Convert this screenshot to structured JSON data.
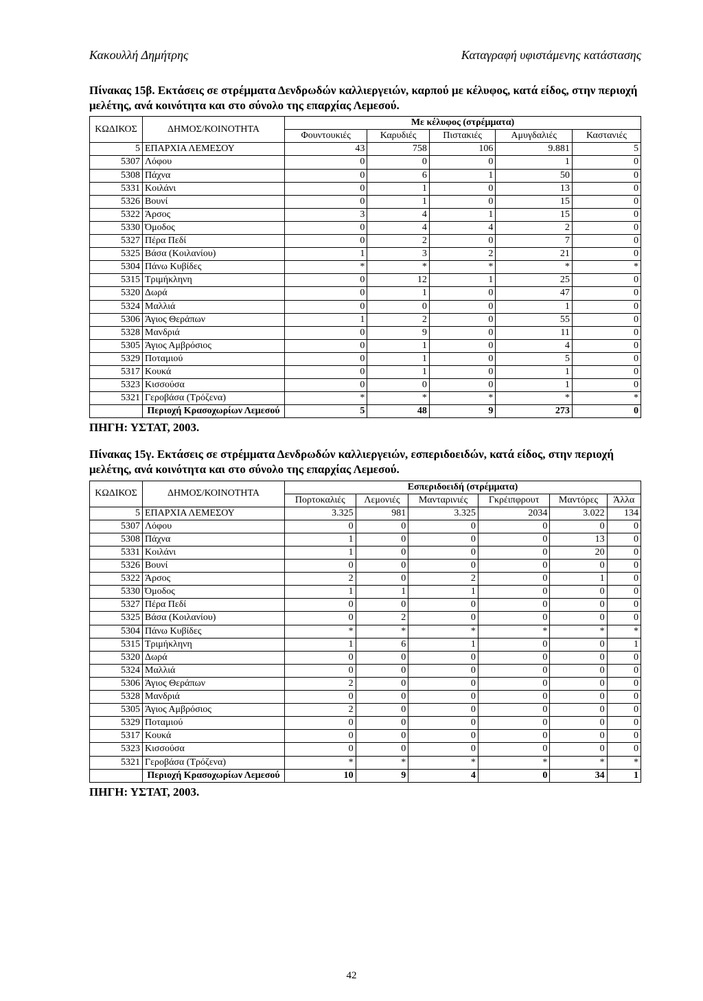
{
  "header": {
    "left": "Κακουλλή Δημήτρης",
    "right": "Καταγραφή υφιστάμενης κατάστασης"
  },
  "pageNumber": "42",
  "source": "ΠΗΓΗ: ΥΣΤΑΤ, 2003.",
  "table1": {
    "title": "Πίνακας 15β. Εκτάσεις σε στρέμματα Δενδρωδών καλλιεργειών, καρπού με κέλυφος, κατά είδος, στην περιοχή μελέτης, ανά κοινότητα και στο σύνολο της επαρχίας Λεμεσού.",
    "groupHeader": "Με κέλυφος (στρέμματα)",
    "colCode": "ΚΩΔΙΚΟΣ",
    "colName": "ΔΗΜΟΣ/ΚΟΙΝΟΤΗΤΑ",
    "columns": [
      "Φουντουκιές",
      "Καρυδιές",
      "Πιστακιές",
      "Αμυγδαλιές",
      "Καστανιές"
    ],
    "rows": [
      [
        "5",
        "ΕΠΑΡΧΙΑ ΛΕΜΕΣΟΥ",
        "43",
        "758",
        "106",
        "9.881",
        "5"
      ],
      [
        "5307",
        "Λόφου",
        "0",
        "0",
        "0",
        "1",
        "0"
      ],
      [
        "5308",
        "Πάχνα",
        "0",
        "6",
        "1",
        "50",
        "0"
      ],
      [
        "5331",
        "Κοιλάνι",
        "0",
        "1",
        "0",
        "13",
        "0"
      ],
      [
        "5326",
        "Βουνί",
        "0",
        "1",
        "0",
        "15",
        "0"
      ],
      [
        "5322",
        "Άρσος",
        "3",
        "4",
        "1",
        "15",
        "0"
      ],
      [
        "5330",
        "Όμοδος",
        "0",
        "4",
        "4",
        "2",
        "0"
      ],
      [
        "5327",
        "Πέρα Πεδί",
        "0",
        "2",
        "0",
        "7",
        "0"
      ],
      [
        "5325",
        "Βάσα (Κοιλανίου)",
        "1",
        "3",
        "2",
        "21",
        "0"
      ],
      [
        "5304",
        "Πάνω Κυβίδες",
        "*",
        "*",
        "*",
        "*",
        "*"
      ],
      [
        "5315",
        "Τριμήκληνη",
        "0",
        "12",
        "1",
        "25",
        "0"
      ],
      [
        "5320",
        "Δωρά",
        "0",
        "1",
        "0",
        "47",
        "0"
      ],
      [
        "5324",
        "Μαλλιά",
        "0",
        "0",
        "0",
        "1",
        "0"
      ],
      [
        "5306",
        "Άγιος Θεράπων",
        "1",
        "2",
        "0",
        "55",
        "0"
      ],
      [
        "5328",
        "Μανδριά",
        "0",
        "9",
        "0",
        "11",
        "0"
      ],
      [
        "5305",
        "Άγιος Αμβρόσιος",
        "0",
        "1",
        "0",
        "4",
        "0"
      ],
      [
        "5329",
        "Ποταμιού",
        "0",
        "1",
        "0",
        "5",
        "0"
      ],
      [
        "5317",
        "Κουκά",
        "0",
        "1",
        "0",
        "1",
        "0"
      ],
      [
        "5323",
        "Κισσούσα",
        "0",
        "0",
        "0",
        "1",
        "0"
      ],
      [
        "5321",
        "Γεροβάσα (Τρόζενα)",
        "*",
        "*",
        "*",
        "*",
        "*"
      ]
    ],
    "summary": [
      "",
      "Περιοχή Κρασοχωρίων Λεμεσού",
      "5",
      "48",
      "9",
      "273",
      "0"
    ]
  },
  "table2": {
    "title": "Πίνακας 15γ. Εκτάσεις σε στρέμματα Δενδρωδών καλλιεργειών, εσπεριδοειδών, κατά είδος, στην περιοχή μελέτης, ανά κοινότητα και στο σύνολο της επαρχίας Λεμεσού.",
    "groupHeader": "Εσπεριδοειδή (στρέμματα)",
    "colCode": "ΚΩΔΙΚΟΣ",
    "colName": "ΔΗΜΟΣ/ΚΟΙΝΟΤΗΤΑ",
    "columns": [
      "Πορτοκαλιές",
      "Λεμονιές",
      "Μανταρινιές",
      "Γκρέιπφρουτ",
      "Μαντόρες",
      "Άλλα"
    ],
    "rows": [
      [
        "5",
        "ΕΠΑΡΧΙΑ ΛΕΜΕΣΟΥ",
        "3.325",
        "981",
        "3.325",
        "2034",
        "3.022",
        "134"
      ],
      [
        "5307",
        "Λόφου",
        "0",
        "0",
        "0",
        "0",
        "0",
        "0"
      ],
      [
        "5308",
        "Πάχνα",
        "1",
        "0",
        "0",
        "0",
        "13",
        "0"
      ],
      [
        "5331",
        "Κοιλάνι",
        "1",
        "0",
        "0",
        "0",
        "20",
        "0"
      ],
      [
        "5326",
        "Βουνί",
        "0",
        "0",
        "0",
        "0",
        "0",
        "0"
      ],
      [
        "5322",
        "Άρσος",
        "2",
        "0",
        "2",
        "0",
        "1",
        "0"
      ],
      [
        "5330",
        "Όμοδος",
        "1",
        "1",
        "1",
        "0",
        "0",
        "0"
      ],
      [
        "5327",
        "Πέρα Πεδί",
        "0",
        "0",
        "0",
        "0",
        "0",
        "0"
      ],
      [
        "5325",
        "Βάσα (Κοιλανίου)",
        "0",
        "2",
        "0",
        "0",
        "0",
        "0"
      ],
      [
        "5304",
        "Πάνω Κυβίδες",
        "*",
        "*",
        "*",
        "*",
        "*",
        "*"
      ],
      [
        "5315",
        "Τριμήκληνη",
        "1",
        "6",
        "1",
        "0",
        "0",
        "1"
      ],
      [
        "5320",
        "Δωρά",
        "0",
        "0",
        "0",
        "0",
        "0",
        "0"
      ],
      [
        "5324",
        "Μαλλιά",
        "0",
        "0",
        "0",
        "0",
        "0",
        "0"
      ],
      [
        "5306",
        "Άγιος Θεράπων",
        "2",
        "0",
        "0",
        "0",
        "0",
        "0"
      ],
      [
        "5328",
        "Μανδριά",
        "0",
        "0",
        "0",
        "0",
        "0",
        "0"
      ],
      [
        "5305",
        "Άγιος Αμβρόσιος",
        "2",
        "0",
        "0",
        "0",
        "0",
        "0"
      ],
      [
        "5329",
        "Ποταμιού",
        "0",
        "0",
        "0",
        "0",
        "0",
        "0"
      ],
      [
        "5317",
        "Κουκά",
        "0",
        "0",
        "0",
        "0",
        "0",
        "0"
      ],
      [
        "5323",
        "Κισσούσα",
        "0",
        "0",
        "0",
        "0",
        "0",
        "0"
      ],
      [
        "5321",
        "Γεροβάσα (Τρόζενα)",
        "*",
        "*",
        "*",
        "*",
        "*",
        "*"
      ]
    ],
    "summary": [
      "",
      "Περιοχή Κρασοχωρίων Λεμεσού",
      "10",
      "9",
      "4",
      "0",
      "34",
      "1"
    ]
  }
}
